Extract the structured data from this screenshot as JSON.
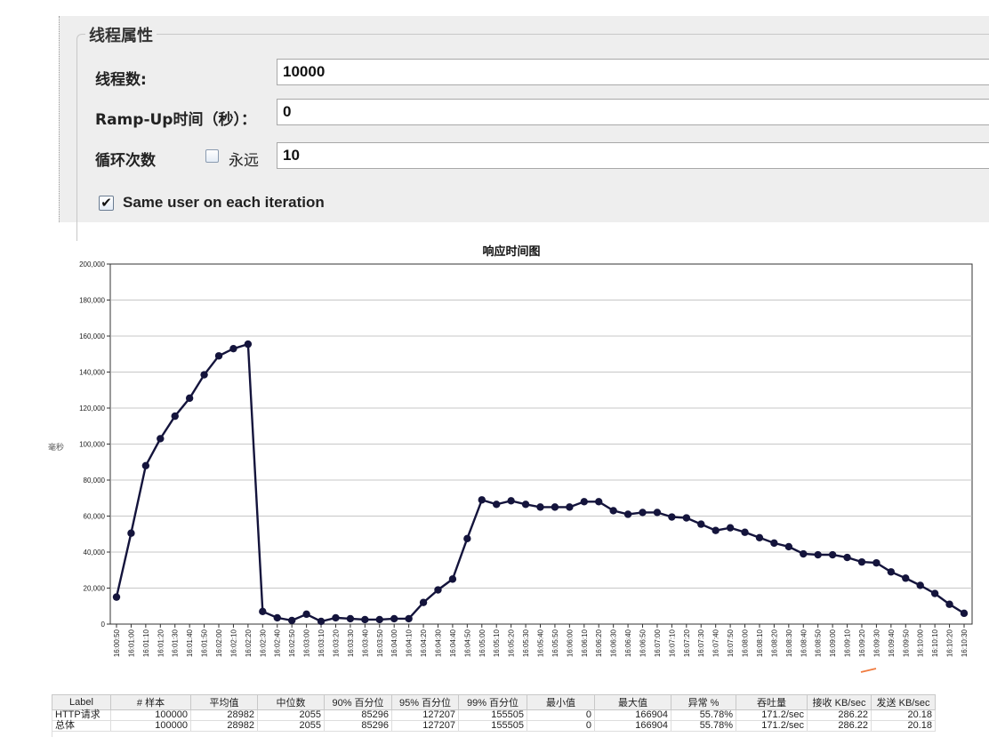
{
  "thread_props": {
    "title": "线程属性",
    "threads_label": "线程数:",
    "threads_value": "10000",
    "rampup_label": "Ramp-Up时间（秒）：",
    "rampup_value": "0",
    "loop_label": "循环次数",
    "forever_label": "永远",
    "forever_checked": false,
    "loop_value": "10",
    "same_user_label": "Same user on each iteration",
    "same_user_checked": true
  },
  "chart": {
    "y_fragment": "毫秒"
  },
  "chart_data": {
    "type": "line",
    "title": "响应时间图",
    "xlabel": "",
    "ylabel": "",
    "ylim": [
      0,
      200000
    ],
    "yticks": [
      0,
      20000,
      40000,
      60000,
      80000,
      100000,
      120000,
      140000,
      160000,
      180000,
      200000
    ],
    "ytick_labels": [
      "0",
      "20,000",
      "40,000",
      "60,000",
      "80,000",
      "100,000",
      "120,000",
      "140,000",
      "160,000",
      "180,000",
      "200,000"
    ],
    "grid": true,
    "series_color": "#14143c",
    "x": [
      "16:00:50",
      "16:01:00",
      "16:01:10",
      "16:01:20",
      "16:01:30",
      "16:01:40",
      "16:01:50",
      "16:02:00",
      "16:02:10",
      "16:02:20",
      "16:02:30",
      "16:02:40",
      "16:02:50",
      "16:03:00",
      "16:03:10",
      "16:03:20",
      "16:03:30",
      "16:03:40",
      "16:03:50",
      "16:04:00",
      "16:04:10",
      "16:04:20",
      "16:04:30",
      "16:04:40",
      "16:04:50",
      "16:05:00",
      "16:05:10",
      "16:05:20",
      "16:05:30",
      "16:05:40",
      "16:05:50",
      "16:06:00",
      "16:06:10",
      "16:06:20",
      "16:06:30",
      "16:06:40",
      "16:06:50",
      "16:07:00",
      "16:07:10",
      "16:07:20",
      "16:07:30",
      "16:07:40",
      "16:07:50",
      "16:08:00",
      "16:08:10",
      "16:08:20",
      "16:08:30",
      "16:08:40",
      "16:08:50",
      "16:09:00",
      "16:09:10",
      "16:09:20",
      "16:09:30",
      "16:09:40",
      "16:09:50",
      "16:10:00",
      "16:10:10",
      "16:10:20",
      "16:10:30"
    ],
    "series": [
      {
        "values": [
          15000,
          50500,
          88000,
          103000,
          115500,
          125500,
          138500,
          149000,
          153000,
          155500,
          7000,
          3500,
          2000,
          5500,
          1500,
          3500,
          3000,
          2500,
          2500,
          3000,
          3000,
          12000,
          19000,
          25000,
          47500,
          69000,
          66500,
          68500,
          66500,
          65000,
          65000,
          65000,
          68000,
          68000,
          63000,
          61000,
          62000,
          62000,
          59500,
          59000,
          55500,
          52000,
          53500,
          51000,
          48000,
          45000,
          43000,
          39000,
          38500,
          38500,
          37000,
          34500,
          34000,
          29000,
          25500,
          21500,
          17000,
          11000,
          6000
        ]
      }
    ]
  },
  "table": {
    "headers": [
      "Label",
      "# 样本",
      "平均值",
      "中位数",
      "90% 百分位",
      "95% 百分位",
      "99% 百分位",
      "最小值",
      "最大值",
      "异常 %",
      "吞吐量",
      "接收 KB/sec",
      "发送 KB/sec"
    ],
    "rows": [
      [
        "HTTP请求",
        "100000",
        "28982",
        "2055",
        "85296",
        "127207",
        "155505",
        "0",
        "166904",
        "55.78%",
        "171.2/sec",
        "286.22",
        "20.18"
      ],
      [
        "总体",
        "100000",
        "28982",
        "2055",
        "85296",
        "127207",
        "155505",
        "0",
        "166904",
        "55.78%",
        "171.2/sec",
        "286.22",
        "20.18"
      ]
    ]
  }
}
